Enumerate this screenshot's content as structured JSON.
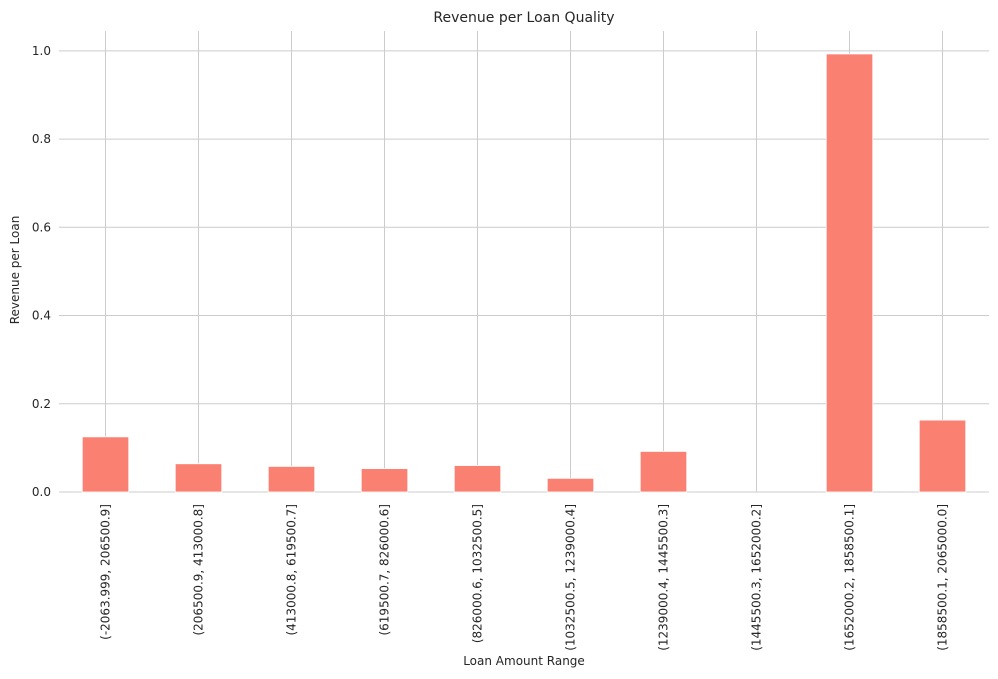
{
  "chart_data": {
    "type": "bar",
    "title": "Revenue per Loan Quality",
    "xlabel": "Loan Amount Range",
    "ylabel": "Revenue per Loan",
    "categories": [
      "(-2063.999, 206500.9]",
      "(206500.9, 413000.8]",
      "(413000.8, 619500.7]",
      "(619500.7, 826000.6]",
      "(826000.6, 1032500.5]",
      "(1032500.5, 1239000.4]",
      "(1239000.4, 1445500.3]",
      "(1445500.3, 1652000.2]",
      "(1652000.2, 1858500.1]",
      "(1858500.1, 2065000.0]"
    ],
    "values": [
      0.125,
      0.064,
      0.058,
      0.053,
      0.06,
      0.031,
      0.092,
      0.0,
      0.993,
      0.163
    ],
    "ylim": [
      0,
      1.045
    ],
    "yticks": [
      "0.0",
      "0.2",
      "0.4",
      "0.6",
      "0.8",
      "1.0"
    ],
    "grid": true,
    "bar_color": "#fa8072",
    "grid_color": "#cccccc",
    "background": "#ffffff"
  }
}
